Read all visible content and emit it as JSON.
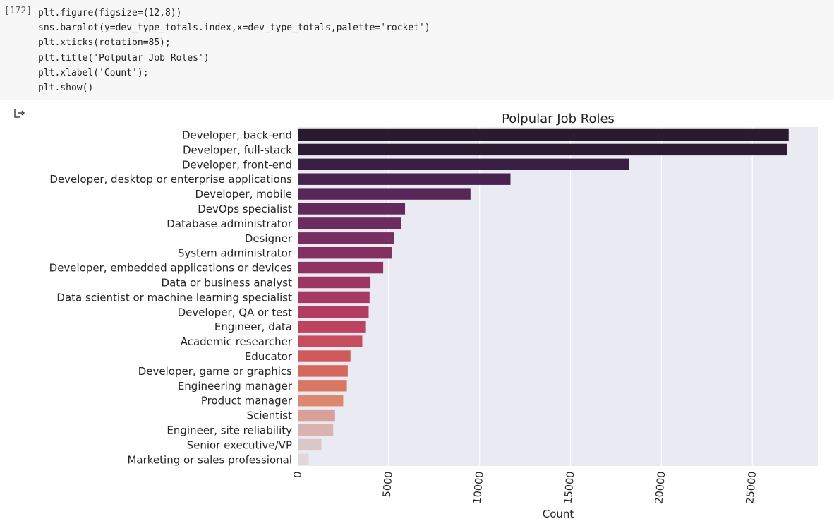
{
  "cell": {
    "execution_count": "[172]",
    "code_lines": [
      "plt.figure(figsize=(12,8))",
      "sns.barplot(y=dev_type_totals.index,x=dev_type_totals,palette='rocket')",
      "plt.xticks(rotation=85);",
      "plt.title('Polpular Job Roles')",
      "plt.xlabel('Count');",
      "plt.show()"
    ]
  },
  "output": {
    "icon": "output-arrow-icon"
  },
  "chart_data": {
    "type": "bar",
    "orientation": "horizontal",
    "title": "Polpular Job Roles",
    "xlabel": "Count",
    "ylabel": "",
    "xlim": [
      0,
      28600
    ],
    "xticks": [
      0,
      5000,
      10000,
      15000,
      20000,
      25000
    ],
    "xtick_labels": [
      "0",
      "5000",
      "10000",
      "15000",
      "20000",
      "25000"
    ],
    "xtick_rotation": 85,
    "grid": true,
    "palette": "rocket",
    "categories": [
      "Developer, back-end",
      "Developer, full-stack",
      "Developer, front-end",
      "Developer, desktop or enterprise applications",
      "Developer, mobile",
      "DevOps specialist",
      "Database administrator",
      "Designer",
      "System administrator",
      "Developer, embedded applications or devices",
      "Data or business analyst",
      "Data scientist or machine learning specialist",
      "Developer, QA or test",
      "Engineer, data",
      "Academic researcher",
      "Educator",
      "Developer, game or graphics",
      "Engineering manager",
      "Product manager",
      "Scientist",
      "Engineer, site reliability",
      "Senior executive/VP",
      "Marketing or sales professional"
    ],
    "values": [
      27000,
      26900,
      18200,
      11700,
      9500,
      5900,
      5700,
      5300,
      5200,
      4700,
      4000,
      3950,
      3900,
      3750,
      3550,
      2900,
      2750,
      2700,
      2500,
      2050,
      1950,
      1300,
      600
    ],
    "colors": [
      "#2a1a2e",
      "#2d1b33",
      "#3a1f45",
      "#48234f",
      "#562757",
      "#62295b",
      "#6d2c5e",
      "#782f60",
      "#833161",
      "#8f3462",
      "#9b3763",
      "#a73a63",
      "#b33d62",
      "#bd4460",
      "#c64d5e",
      "#ce5a5b",
      "#d4685c",
      "#d87863",
      "#db886f",
      "#d9a09a",
      "#d8b3b1",
      "#dcc7c8",
      "#e2d8dc"
    ]
  }
}
